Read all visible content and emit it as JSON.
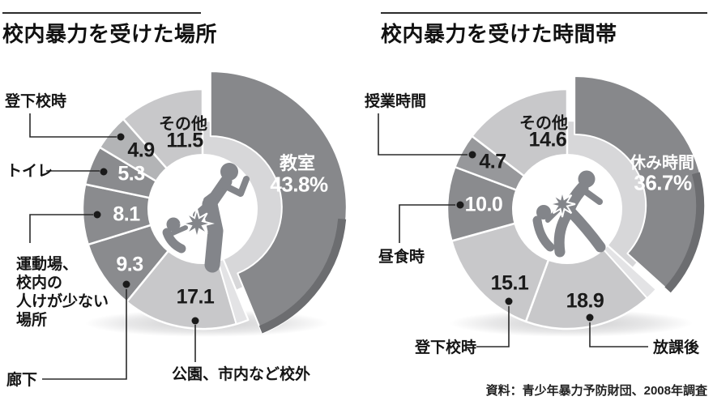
{
  "source_note": "資料：青少年暴力予防財団、2008年調査",
  "colors": {
    "dark_slice": "#8a8b8e",
    "medium_slice": "#b3b4b6",
    "light_slice": "#c8c8ca",
    "exploded_slice": "#87888b",
    "rim_3d": "#6c6d70",
    "inner_wall": "#d7d7d9",
    "bevel": "#e3e3e5",
    "text_dark": "#1a1a1a",
    "text_light": "#ffffff",
    "leader": "#2a2a2a"
  },
  "chart_data": [
    {
      "type": "pie",
      "donut": true,
      "title": "校内暴力を受けた場所",
      "unit": "%",
      "start_angle": "top",
      "direction": "clockwise",
      "legend_position": "none",
      "slices": [
        {
          "label": "教室",
          "value": 43.8,
          "display": "43.8%",
          "color": "#87888b",
          "text_color": "#ffffff",
          "exploded": true,
          "label_inside": true
        },
        {
          "label": "公園、市内など校外",
          "value": 17.1,
          "display": "17.1",
          "color": "#c8c8ca",
          "text_color": "#1a1a1a"
        },
        {
          "label": "廊下",
          "value": 9.3,
          "display": "9.3",
          "color": "#8a8b8e",
          "text_color": "#ffffff"
        },
        {
          "label": "運動場、校内の人けが少ない場所",
          "value": 8.1,
          "display": "8.1",
          "color": "#8a8b8e",
          "text_color": "#ffffff",
          "label_lines": "運動場、\n校内の\n人けが少ない\n場所"
        },
        {
          "label": "トイレ",
          "value": 5.3,
          "display": "5.3",
          "color": "#8a8b8e",
          "text_color": "#ffffff"
        },
        {
          "label": "登下校時",
          "value": 4.9,
          "display": "4.9",
          "color": "#b3b4b6",
          "text_color": "#1a1a1a"
        },
        {
          "label": "その他",
          "value": 11.5,
          "display": "11.5",
          "color": "#c8c8ca",
          "text_color": "#1a1a1a",
          "label_inside": true
        }
      ]
    },
    {
      "type": "pie",
      "donut": true,
      "title": "校内暴力を受けた時間帯",
      "unit": "%",
      "start_angle": "top",
      "direction": "clockwise",
      "legend_position": "none",
      "slices": [
        {
          "label": "休み時間",
          "value": 36.7,
          "display": "36.7%",
          "color": "#87888b",
          "text_color": "#ffffff",
          "exploded": true,
          "label_inside": true
        },
        {
          "label": "放課後",
          "value": 18.9,
          "display": "18.9",
          "color": "#c8c8ca",
          "text_color": "#1a1a1a"
        },
        {
          "label": "登下校時",
          "value": 15.1,
          "display": "15.1",
          "color": "#c8c8ca",
          "text_color": "#1a1a1a"
        },
        {
          "label": "昼食時",
          "value": 10.0,
          "display": "10.0",
          "color": "#8a8b8e",
          "text_color": "#ffffff"
        },
        {
          "label": "授業時間",
          "value": 4.7,
          "display": "4.7",
          "color": "#97989b",
          "text_color": "#1a1a1a"
        },
        {
          "label": "その他",
          "value": 14.6,
          "display": "14.6",
          "color": "#c8c8ca",
          "text_color": "#1a1a1a",
          "label_inside": true
        }
      ]
    }
  ]
}
